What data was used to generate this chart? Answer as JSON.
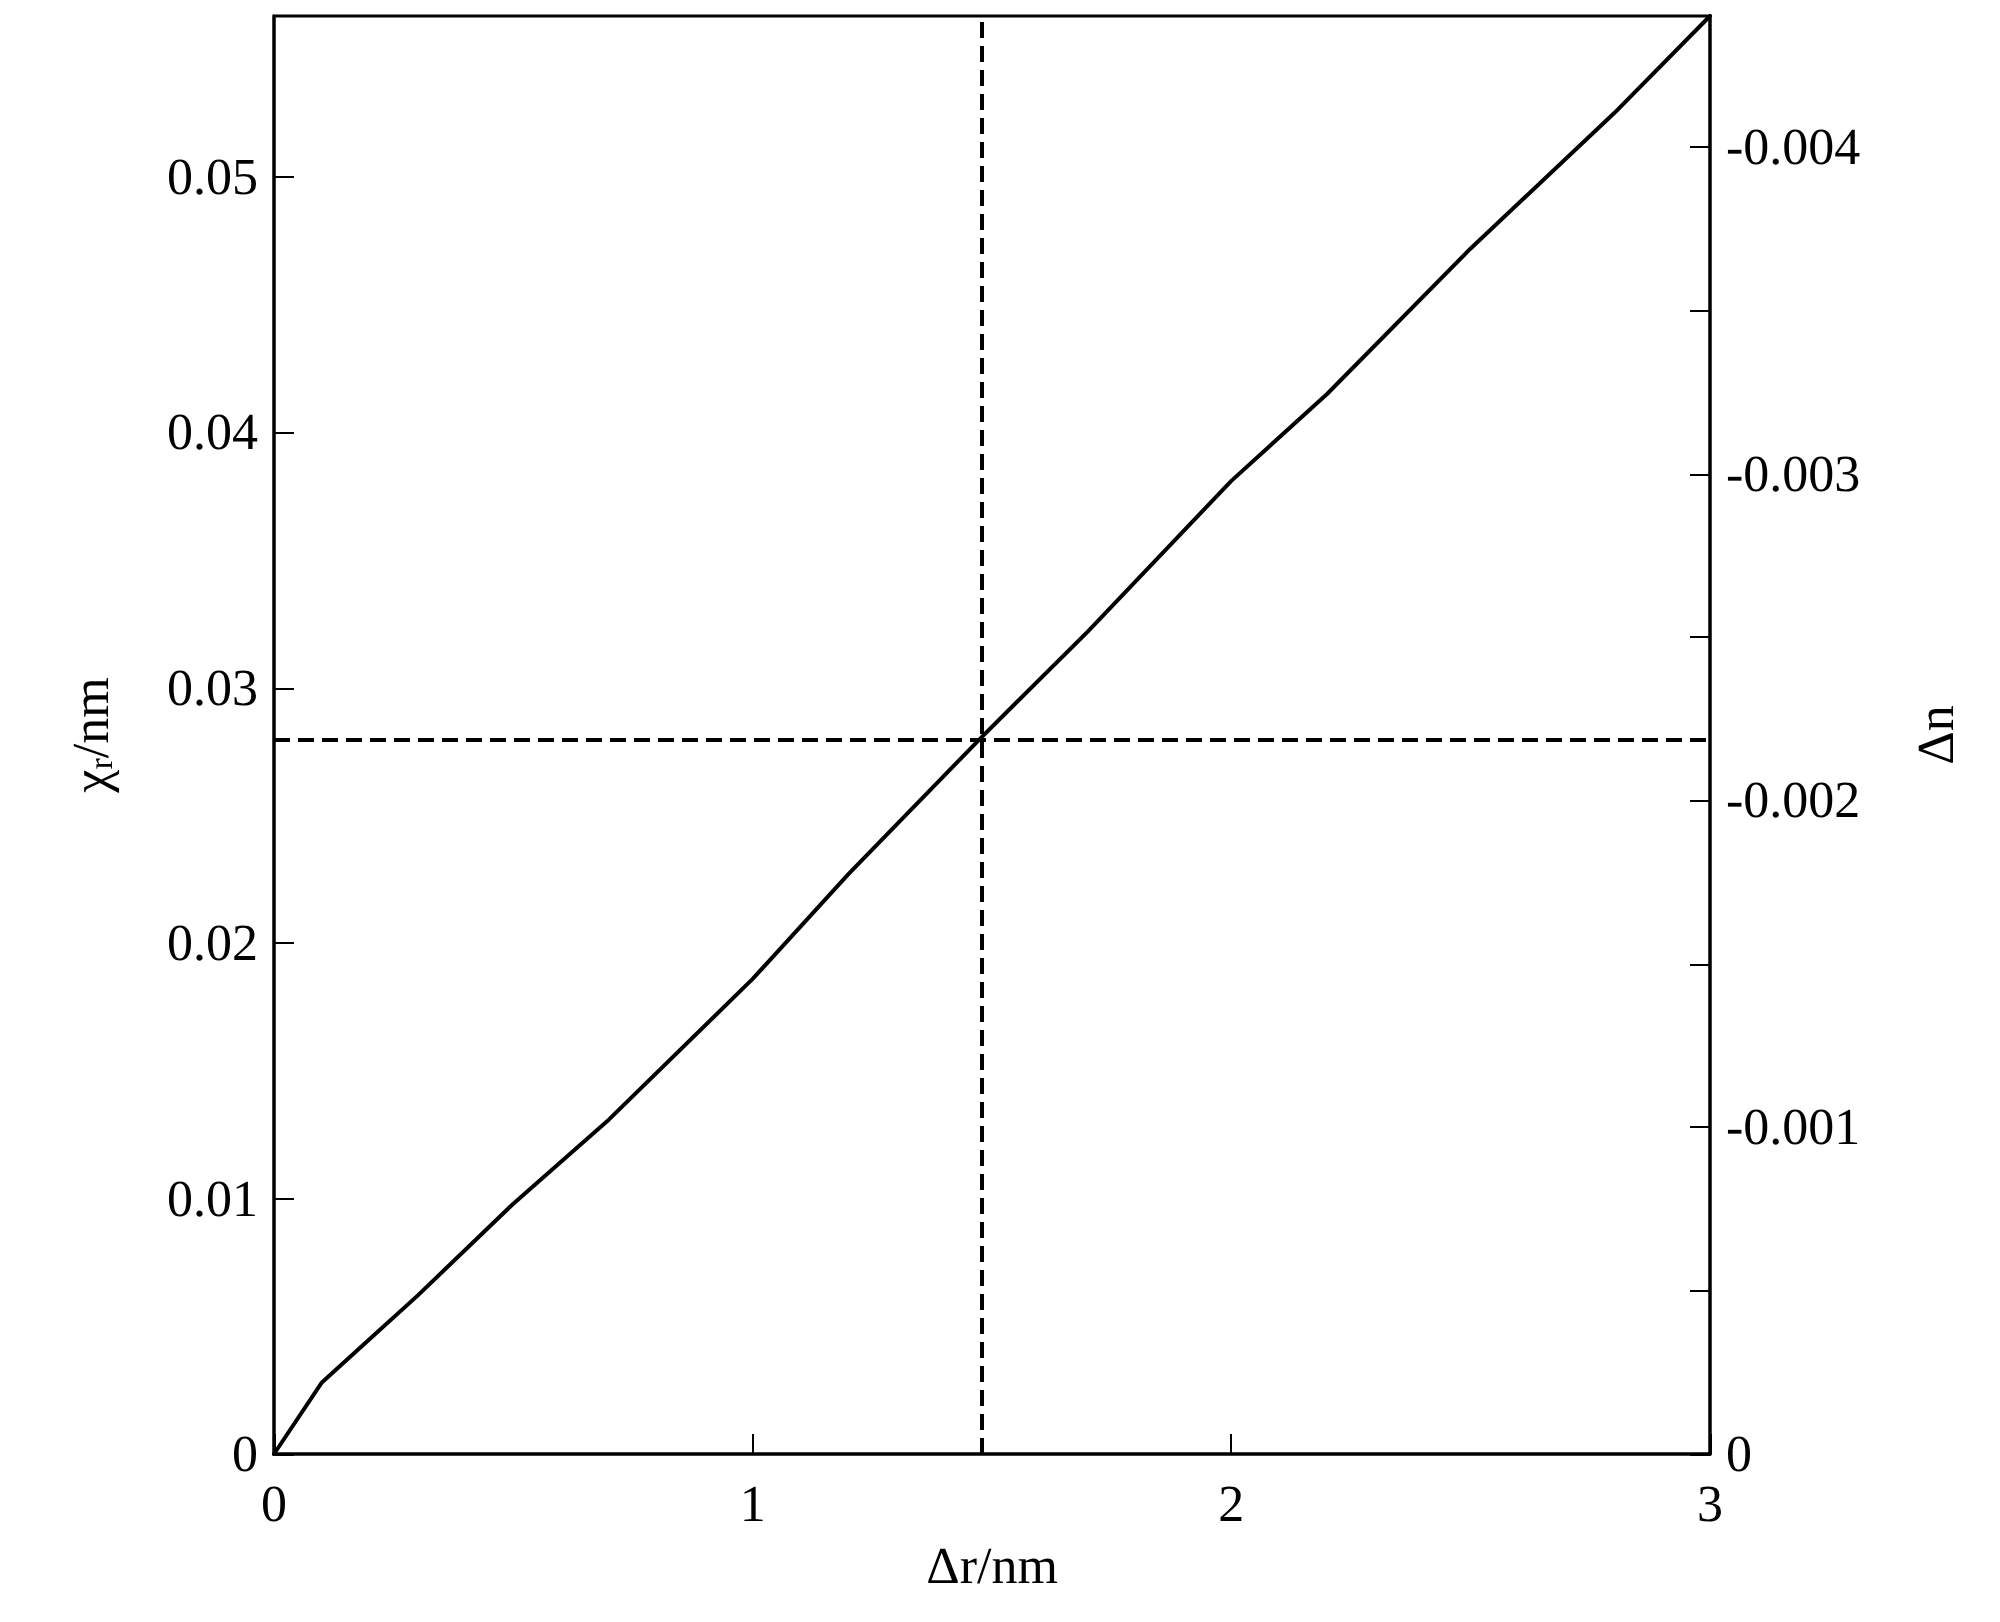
{
  "chart_data": {
    "type": "line",
    "xlabel": "Δr/nm",
    "ylabel": "χ$_{r}$/nm",
    "y2label": "Δn",
    "x": [
      0,
      0.1,
      0.2,
      0.3,
      0.5,
      0.7,
      1.0,
      1.2,
      1.48,
      1.7,
      2.0,
      2.2,
      2.5,
      2.8,
      3.0
    ],
    "series": [
      {
        "color": "#000000",
        "values": [
          0,
          0.0028,
          0.0045,
          0.0062,
          0.0098,
          0.0131,
          0.0186,
          0.0227,
          0.0281,
          0.0322,
          0.0381,
          0.0415,
          0.0472,
          0.0525,
          0.0563
        ]
      }
    ],
    "xlim": [
      0,
      3
    ],
    "xticks": [
      0,
      1,
      2,
      3
    ],
    "ylim": [
      0,
      0.0563
    ],
    "yticks": [
      0,
      0.01,
      0.02,
      0.03,
      0.04,
      0.05
    ],
    "y2lim": [
      0,
      -0.0044
    ],
    "y2ticks": [
      0,
      {
        "value": -0.0005,
        "label": null
      },
      -0.001,
      {
        "value": -0.0015,
        "label": null
      },
      -0.002,
      {
        "value": -0.0025,
        "label": null
      },
      -0.003,
      {
        "value": -0.0035,
        "label": null
      },
      -0.004
    ],
    "ref_lines": [
      {
        "axis": "x",
        "value": 1.48,
        "color": "#000000",
        "line_style": "dashed"
      },
      {
        "axis": "y",
        "value": 0.028,
        "color": "#000000",
        "line_style": "dashed"
      }
    ],
    "grid": false,
    "marker": "none",
    "line_style": "solid"
  }
}
